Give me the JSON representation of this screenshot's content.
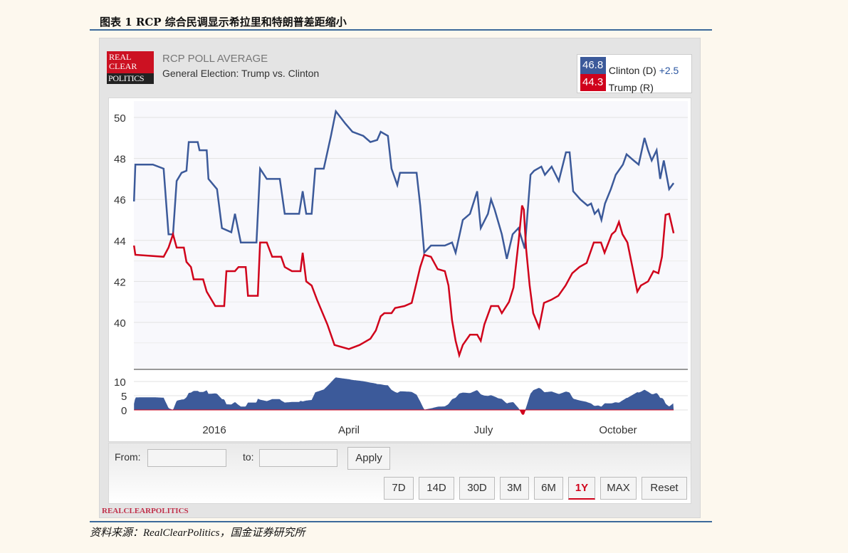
{
  "figure_title": "图表 1 RCP 综合民调显示希拉里和特朗普差距缩小",
  "source": "资料来源：RealClearPolitics，国金证券研究所",
  "logo": {
    "line1": "REAL",
    "line2": "CLEAR",
    "line3": "POLITICS"
  },
  "header": {
    "title": "RCP POLL AVERAGE",
    "subtitle": "General Election: Trump vs. Clinton"
  },
  "legend": [
    {
      "value": "46.8",
      "name": "Clinton (D)",
      "spread": "+2.5",
      "color": "#3c5a9a"
    },
    {
      "value": "44.3",
      "name": "Trump (R)",
      "color": "#d0021b"
    }
  ],
  "controls": {
    "from_label": "From:",
    "to_label": "to:",
    "from_value": "",
    "to_value": "",
    "apply": "Apply",
    "ranges": [
      "7D",
      "14D",
      "30D",
      "3M",
      "6M",
      "1Y",
      "MAX",
      "Reset"
    ],
    "active_range": "1Y"
  },
  "footer_brand": "REALCLEARPOLITICS",
  "chart_data": {
    "type": "line",
    "title": "RCP POLL AVERAGE",
    "x_unit": "months since 2016-01-01",
    "x_ticks": [
      {
        "x": 0,
        "label": "2016"
      },
      {
        "x": 3,
        "label": "April"
      },
      {
        "x": 6,
        "label": "July"
      },
      {
        "x": 9,
        "label": "October"
      }
    ],
    "ylim": [
      38,
      50.5
    ],
    "y_ticks": [
      "40",
      "42",
      "44",
      "46",
      "48",
      "50"
    ],
    "spread_ticks": [
      "0",
      "5",
      "10"
    ],
    "grid": true,
    "legend_position": "top-right",
    "series": [
      {
        "name": "Clinton (D)",
        "color": "#3c5a9a",
        "points": [
          [
            -1.79,
            45.9
          ],
          [
            -1.76,
            47.7
          ],
          [
            -1.37,
            47.7
          ],
          [
            -1.13,
            47.5
          ],
          [
            -1.02,
            44.3
          ],
          [
            -0.92,
            44.3
          ],
          [
            -0.84,
            46.9
          ],
          [
            -0.73,
            47.3
          ],
          [
            -0.62,
            47.4
          ],
          [
            -0.57,
            48.8
          ],
          [
            -0.37,
            48.8
          ],
          [
            -0.33,
            48.4
          ],
          [
            -0.17,
            48.4
          ],
          [
            -0.13,
            47.0
          ],
          [
            0.06,
            46.5
          ],
          [
            0.17,
            44.6
          ],
          [
            0.38,
            44.4
          ],
          [
            0.46,
            45.3
          ],
          [
            0.59,
            43.9
          ],
          [
            0.94,
            43.9
          ],
          [
            1.02,
            47.5
          ],
          [
            1.17,
            47.0
          ],
          [
            1.46,
            47.0
          ],
          [
            1.57,
            45.3
          ],
          [
            1.89,
            45.3
          ],
          [
            1.97,
            46.4
          ],
          [
            2.05,
            45.3
          ],
          [
            2.17,
            45.3
          ],
          [
            2.25,
            47.5
          ],
          [
            2.44,
            47.5
          ],
          [
            2.6,
            49.1
          ],
          [
            2.71,
            50.3
          ],
          [
            2.92,
            49.7
          ],
          [
            3.08,
            49.3
          ],
          [
            3.32,
            49.1
          ],
          [
            3.48,
            48.8
          ],
          [
            3.63,
            48.9
          ],
          [
            3.71,
            49.3
          ],
          [
            3.87,
            49.1
          ],
          [
            3.95,
            47.5
          ],
          [
            4.08,
            46.7
          ],
          [
            4.14,
            47.3
          ],
          [
            4.51,
            47.3
          ],
          [
            4.59,
            45.7
          ],
          [
            4.68,
            43.4
          ],
          [
            4.83,
            43.75
          ],
          [
            5.14,
            43.75
          ],
          [
            5.3,
            43.9
          ],
          [
            5.38,
            43.4
          ],
          [
            5.54,
            45.0
          ],
          [
            5.7,
            45.3
          ],
          [
            5.86,
            46.4
          ],
          [
            5.94,
            44.6
          ],
          [
            6.1,
            45.3
          ],
          [
            6.17,
            46.0
          ],
          [
            6.25,
            45.5
          ],
          [
            6.41,
            44.3
          ],
          [
            6.52,
            43.1
          ],
          [
            6.65,
            44.3
          ],
          [
            6.78,
            44.6
          ],
          [
            6.92,
            43.6
          ],
          [
            7.05,
            47.2
          ],
          [
            7.13,
            47.4
          ],
          [
            7.29,
            47.6
          ],
          [
            7.37,
            47.2
          ],
          [
            7.52,
            47.6
          ],
          [
            7.68,
            46.9
          ],
          [
            7.84,
            48.3
          ],
          [
            7.92,
            48.3
          ],
          [
            8.0,
            46.4
          ],
          [
            8.16,
            46.0
          ],
          [
            8.32,
            45.7
          ],
          [
            8.4,
            45.8
          ],
          [
            8.48,
            45.3
          ],
          [
            8.56,
            45.5
          ],
          [
            8.63,
            45.0
          ],
          [
            8.71,
            45.8
          ],
          [
            8.84,
            46.5
          ],
          [
            8.95,
            47.2
          ],
          [
            9.11,
            47.7
          ],
          [
            9.19,
            48.2
          ],
          [
            9.35,
            47.9
          ],
          [
            9.46,
            47.7
          ],
          [
            9.59,
            49.0
          ],
          [
            9.67,
            48.4
          ],
          [
            9.75,
            47.9
          ],
          [
            9.86,
            48.4
          ],
          [
            9.94,
            47.0
          ],
          [
            10.02,
            47.9
          ],
          [
            10.14,
            46.5
          ],
          [
            10.24,
            46.8
          ]
        ]
      },
      {
        "name": "Trump (R)",
        "color": "#d0021b",
        "points": [
          [
            -1.79,
            43.75
          ],
          [
            -1.76,
            43.3
          ],
          [
            -1.13,
            43.2
          ],
          [
            -1.02,
            43.65
          ],
          [
            -0.92,
            44.3
          ],
          [
            -0.84,
            43.65
          ],
          [
            -0.68,
            43.65
          ],
          [
            -0.62,
            42.95
          ],
          [
            -0.52,
            42.7
          ],
          [
            -0.46,
            42.1
          ],
          [
            -0.25,
            42.1
          ],
          [
            -0.17,
            41.5
          ],
          [
            0.02,
            40.8
          ],
          [
            0.22,
            40.8
          ],
          [
            0.27,
            42.5
          ],
          [
            0.46,
            42.5
          ],
          [
            0.54,
            42.7
          ],
          [
            0.7,
            42.7
          ],
          [
            0.75,
            41.3
          ],
          [
            0.97,
            41.3
          ],
          [
            1.02,
            43.9
          ],
          [
            1.17,
            43.9
          ],
          [
            1.29,
            43.2
          ],
          [
            1.49,
            43.2
          ],
          [
            1.57,
            42.7
          ],
          [
            1.73,
            42.5
          ],
          [
            1.92,
            42.5
          ],
          [
            1.97,
            43.4
          ],
          [
            2.05,
            42.0
          ],
          [
            2.17,
            41.8
          ],
          [
            2.29,
            41.1
          ],
          [
            2.52,
            39.9
          ],
          [
            2.68,
            38.9
          ],
          [
            3.0,
            38.7
          ],
          [
            3.24,
            38.9
          ],
          [
            3.48,
            39.2
          ],
          [
            3.6,
            39.6
          ],
          [
            3.71,
            40.3
          ],
          [
            3.79,
            40.45
          ],
          [
            3.95,
            40.45
          ],
          [
            4.03,
            40.7
          ],
          [
            4.24,
            40.8
          ],
          [
            4.4,
            40.95
          ],
          [
            4.46,
            41.5
          ],
          [
            4.59,
            42.7
          ],
          [
            4.68,
            43.3
          ],
          [
            4.83,
            43.2
          ],
          [
            4.98,
            42.6
          ],
          [
            5.14,
            42.5
          ],
          [
            5.22,
            41.8
          ],
          [
            5.3,
            40.1
          ],
          [
            5.38,
            39.1
          ],
          [
            5.46,
            38.4
          ],
          [
            5.54,
            38.9
          ],
          [
            5.7,
            39.4
          ],
          [
            5.86,
            39.4
          ],
          [
            5.94,
            39.1
          ],
          [
            6.02,
            39.9
          ],
          [
            6.17,
            40.8
          ],
          [
            6.33,
            40.8
          ],
          [
            6.41,
            40.45
          ],
          [
            6.57,
            41.0
          ],
          [
            6.67,
            41.7
          ],
          [
            6.79,
            44.1
          ],
          [
            6.86,
            45.7
          ],
          [
            6.9,
            45.5
          ],
          [
            6.95,
            43.6
          ],
          [
            7.03,
            41.8
          ],
          [
            7.11,
            40.45
          ],
          [
            7.24,
            39.75
          ],
          [
            7.35,
            40.95
          ],
          [
            7.51,
            41.1
          ],
          [
            7.67,
            41.3
          ],
          [
            7.83,
            41.8
          ],
          [
            7.98,
            42.4
          ],
          [
            8.14,
            42.7
          ],
          [
            8.3,
            42.9
          ],
          [
            8.46,
            43.9
          ],
          [
            8.62,
            43.9
          ],
          [
            8.7,
            43.4
          ],
          [
            8.86,
            44.3
          ],
          [
            8.94,
            44.45
          ],
          [
            9.02,
            44.9
          ],
          [
            9.1,
            44.3
          ],
          [
            9.21,
            43.9
          ],
          [
            9.32,
            42.7
          ],
          [
            9.43,
            41.5
          ],
          [
            9.51,
            41.8
          ],
          [
            9.67,
            42.0
          ],
          [
            9.79,
            42.5
          ],
          [
            9.9,
            42.4
          ],
          [
            9.98,
            43.2
          ],
          [
            10.06,
            45.25
          ],
          [
            10.14,
            45.3
          ],
          [
            10.24,
            44.35
          ]
        ]
      }
    ]
  }
}
